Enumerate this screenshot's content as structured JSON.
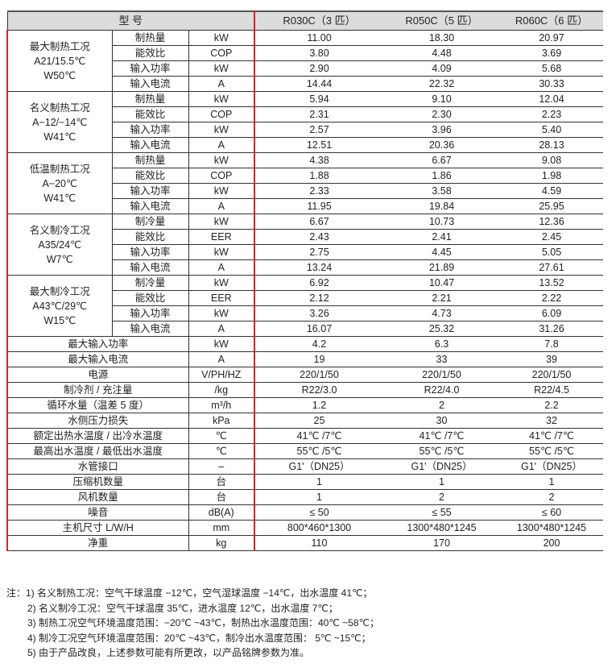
{
  "header": {
    "model_label": "型 号",
    "models": [
      "R030C（3 匹）",
      "R050C（5 匹）",
      "R060C（6 匹）"
    ]
  },
  "groups": [
    {
      "label": [
        "最大制热工况",
        "A21/15.5℃",
        "W50℃"
      ],
      "rows": [
        {
          "param": "制热量",
          "unit": "kW",
          "values": [
            "11.00",
            "18.30",
            "20.97"
          ]
        },
        {
          "param": "能效比",
          "unit": "COP",
          "values": [
            "3.80",
            "4.48",
            "3.69"
          ]
        },
        {
          "param": "输入功率",
          "unit": "kW",
          "values": [
            "2.90",
            "4.09",
            "5.68"
          ]
        },
        {
          "param": "输入电流",
          "unit": "A",
          "values": [
            "14.44",
            "22.32",
            "30.33"
          ]
        }
      ]
    },
    {
      "label": [
        "名义制热工况",
        "A−12/−14℃",
        "W41℃"
      ],
      "rows": [
        {
          "param": "制热量",
          "unit": "kW",
          "values": [
            "5.94",
            "9.10",
            "12.04"
          ]
        },
        {
          "param": "能效比",
          "unit": "COP",
          "values": [
            "2.31",
            "2.30",
            "2.23"
          ]
        },
        {
          "param": "输入功率",
          "unit": "kW",
          "values": [
            "2.57",
            "3.96",
            "5.40"
          ]
        },
        {
          "param": "输入电流",
          "unit": "A",
          "values": [
            "12.51",
            "20.36",
            "28.13"
          ]
        }
      ]
    },
    {
      "label": [
        "低温制热工况",
        "A−20℃",
        "W41℃"
      ],
      "rows": [
        {
          "param": "制热量",
          "unit": "kW",
          "values": [
            "4.38",
            "6.67",
            "9.08"
          ]
        },
        {
          "param": "能效比",
          "unit": "COP",
          "values": [
            "1.88",
            "1.86",
            "1.98"
          ]
        },
        {
          "param": "输入功率",
          "unit": "kW",
          "values": [
            "2.33",
            "3.58",
            "4.59"
          ]
        },
        {
          "param": "输入电流",
          "unit": "A",
          "values": [
            "11.95",
            "19.84",
            "25.95"
          ]
        }
      ]
    },
    {
      "label": [
        "名义制冷工况",
        "A35/24℃",
        "W7℃"
      ],
      "rows": [
        {
          "param": "制冷量",
          "unit": "kW",
          "values": [
            "6.67",
            "10.73",
            "12.36"
          ]
        },
        {
          "param": "能效比",
          "unit": "EER",
          "values": [
            "2.43",
            "2.41",
            "2.45"
          ]
        },
        {
          "param": "输入功率",
          "unit": "kW",
          "values": [
            "2.75",
            "4.45",
            "5.05"
          ]
        },
        {
          "param": "输入电流",
          "unit": "A",
          "values": [
            "13.24",
            "21.89",
            "27.61"
          ]
        }
      ]
    },
    {
      "label": [
        "最大制冷工况",
        "A43℃/29℃",
        "W15℃"
      ],
      "rows": [
        {
          "param": "制冷量",
          "unit": "kW",
          "values": [
            "6.92",
            "10.47",
            "13.52"
          ]
        },
        {
          "param": "能效比",
          "unit": "EER",
          "values": [
            "2.12",
            "2.21",
            "2.22"
          ]
        },
        {
          "param": "输入功率",
          "unit": "kW",
          "values": [
            "3.26",
            "4.73",
            "6.09"
          ]
        },
        {
          "param": "输入电流",
          "unit": "A",
          "values": [
            "16.07",
            "25.32",
            "31.26"
          ]
        }
      ]
    }
  ],
  "rows": [
    {
      "param": "最大输入功率",
      "unit": "kW",
      "values": [
        "4.2",
        "6.3",
        "7.8"
      ]
    },
    {
      "param": "最大输入电流",
      "unit": "A",
      "values": [
        "19",
        "33",
        "39"
      ]
    },
    {
      "param": "电源",
      "unit": "V/PH/HZ",
      "values": [
        "220/1/50",
        "220/1/50",
        "220/1/50"
      ]
    },
    {
      "param": "制冷剂 / 充注量",
      "unit": "/kg",
      "values": [
        "R22/3.0",
        "R22/4.0",
        "R22/4.5"
      ]
    },
    {
      "param": "循环水量（温差 5 度）",
      "unit": "m³/h",
      "values": [
        "1.2",
        "2",
        "2.2"
      ]
    },
    {
      "param": "水侧压力损失",
      "unit": "kPa",
      "values": [
        "25",
        "30",
        "32"
      ]
    },
    {
      "param": "额定出热水温度 / 出冷水温度",
      "unit": "℃",
      "values": [
        "41℃ /7℃",
        "41℃ /7℃",
        "41℃ /7℃"
      ]
    },
    {
      "param": "最高出水温度 / 最低出水温度",
      "unit": "℃",
      "values": [
        "55℃ /5℃",
        "55℃ /5℃",
        "55℃ /5℃"
      ]
    },
    {
      "param": "水管接口",
      "unit": "–",
      "values": [
        "G1'（DN25）",
        "G1'（DN25）",
        "G1'（DN25）"
      ]
    },
    {
      "param": "压缩机数量",
      "unit": "台",
      "values": [
        "1",
        "1",
        "1"
      ]
    },
    {
      "param": "风机数量",
      "unit": "台",
      "values": [
        "1",
        "2",
        "2"
      ]
    },
    {
      "param": "噪音",
      "unit": "dB(A)",
      "values": [
        "≤ 50",
        "≤ 55",
        "≤ 60"
      ]
    },
    {
      "param": "主机尺寸  L/W/H",
      "unit": "mm",
      "values": [
        "800*460*1300",
        "1300*480*1245",
        "1300*480*1245"
      ]
    },
    {
      "param": "净重",
      "unit": "kg",
      "values": [
        "110",
        "170",
        "200"
      ]
    }
  ],
  "notes": [
    "注：1) 名义制热工况：空气干球温度 −12℃，空气湿球温度 −14℃，出水温度 41℃；",
    "2) 名义制冷工况：空气干球温度 35℃，进水温度 12℃，出水温度 7℃；",
    "3) 制热工况空气环境温度范围：−20℃ ~43℃，制热出水温度范围：40℃ ~58℃；",
    "4) 制冷工况空气环境温度范围：20℃ ~43℃，制冷出水温度范围： 5℃ ~15℃；",
    "5) 由于产品改良，上述参数可能有所更改，以产品铭牌参数为准。"
  ]
}
